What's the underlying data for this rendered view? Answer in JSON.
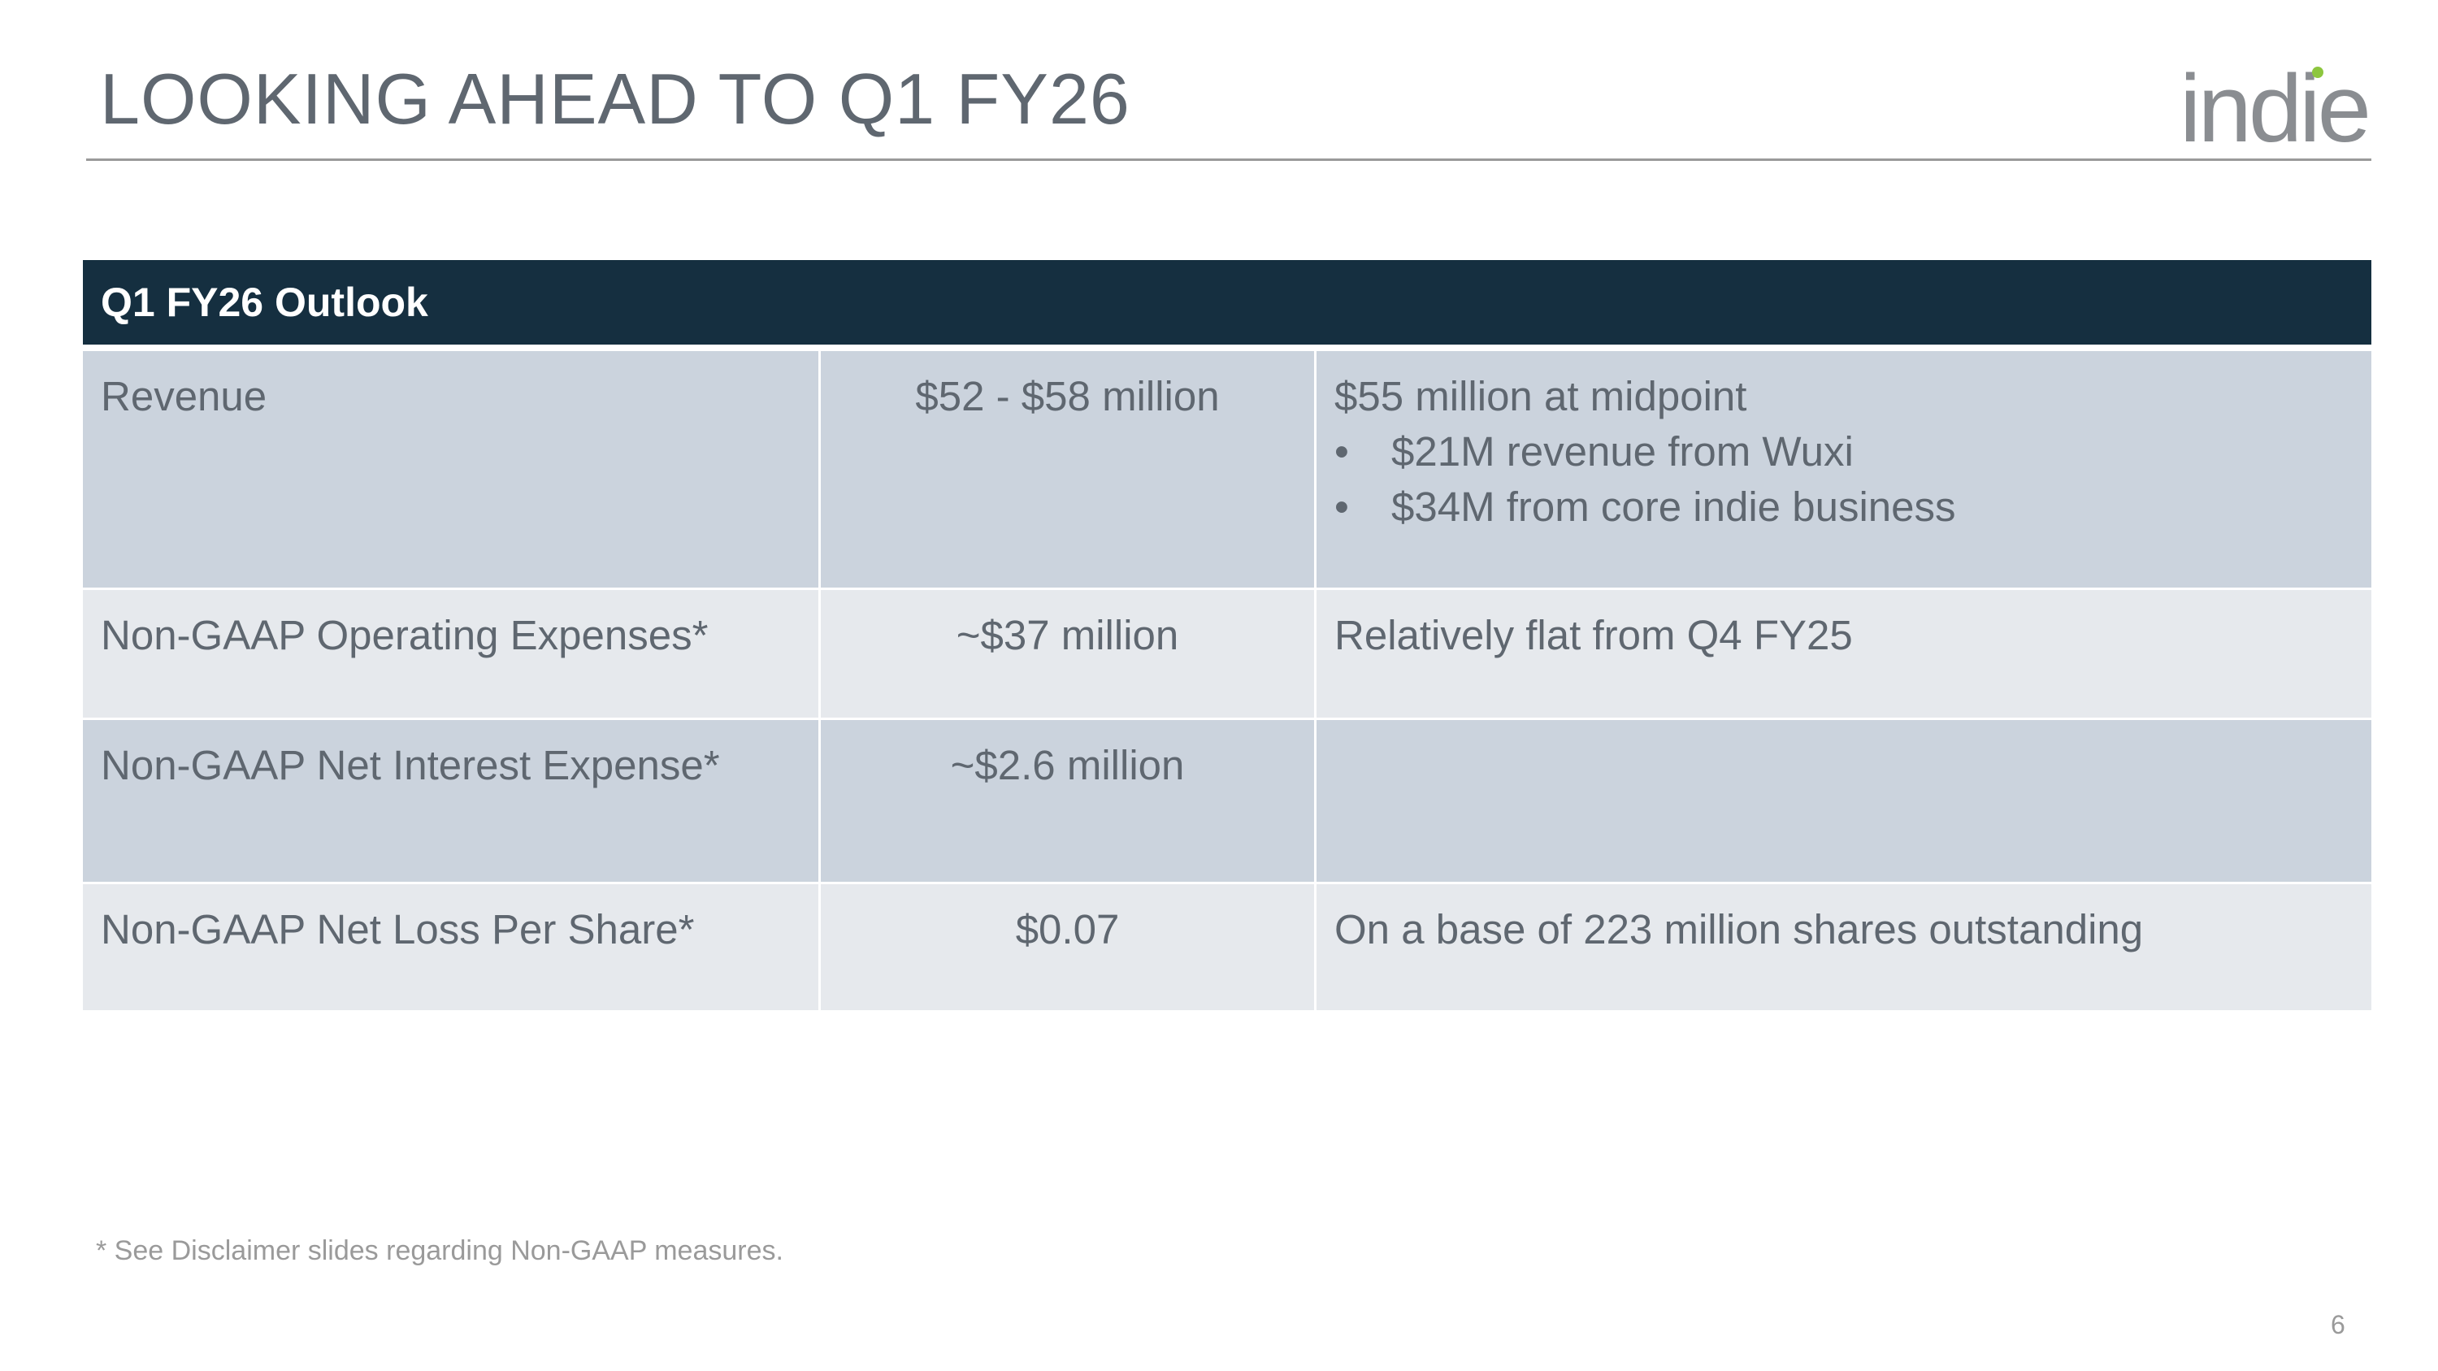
{
  "slide": {
    "title": "LOOKING AHEAD TO Q1 FY26",
    "logo_text": "indie",
    "page_number": "6"
  },
  "table": {
    "header": "Q1 FY26 Outlook",
    "rows": [
      {
        "label": "Revenue",
        "value": "$52 - $58 million",
        "note": "$55 million at midpoint",
        "bullets": [
          "$21M revenue from Wuxi",
          "$34M from core indie business"
        ]
      },
      {
        "label": "Non-GAAP Operating Expenses*",
        "value": "~$37 million",
        "note": "Relatively flat from Q4 FY25"
      },
      {
        "label": "Non-GAAP Net Interest Expense*",
        "value": "~$2.6 million",
        "note": ""
      },
      {
        "label": "Non-GAAP Net Loss Per Share*",
        "value": "$0.07",
        "note": "On a base of 223 million shares outstanding"
      }
    ]
  },
  "footnote": "* See Disclaimer slides regarding Non-GAAP measures.",
  "colors": {
    "header_bg": "#152f40",
    "row_dark": "#cbd3dd",
    "row_light": "#e6e9ed",
    "text": "#5f6770",
    "logo_gray": "#8a8d91",
    "logo_dot": "#8dc63f"
  }
}
